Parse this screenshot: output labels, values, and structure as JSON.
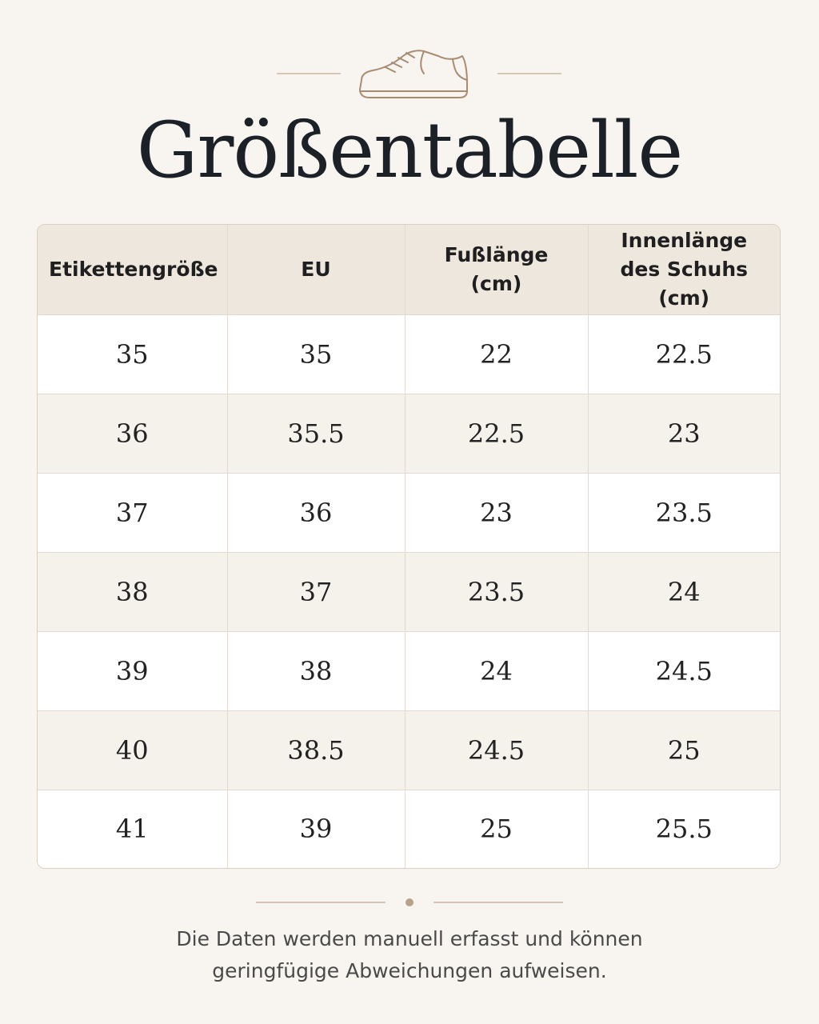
{
  "title": "Größentabelle",
  "icon": "sneaker-icon",
  "accent_color": "#b9a28a",
  "table": {
    "headers": [
      "Etikettengröße",
      "EU",
      "Fußlänge (cm)",
      "Innenlänge des Schuhs (cm)"
    ],
    "rows": [
      [
        "35",
        "35",
        "22",
        "22.5"
      ],
      [
        "36",
        "35.5",
        "22.5",
        "23"
      ],
      [
        "37",
        "36",
        "23",
        "23.5"
      ],
      [
        "38",
        "37",
        "23.5",
        "24"
      ],
      [
        "39",
        "38",
        "24",
        "24.5"
      ],
      [
        "40",
        "38.5",
        "24.5",
        "25"
      ],
      [
        "41",
        "39",
        "25",
        "25.5"
      ]
    ]
  },
  "footnote": {
    "line1": "Die Daten werden manuell erfasst und können",
    "line2": "geringfügige Abweichungen aufweisen."
  }
}
